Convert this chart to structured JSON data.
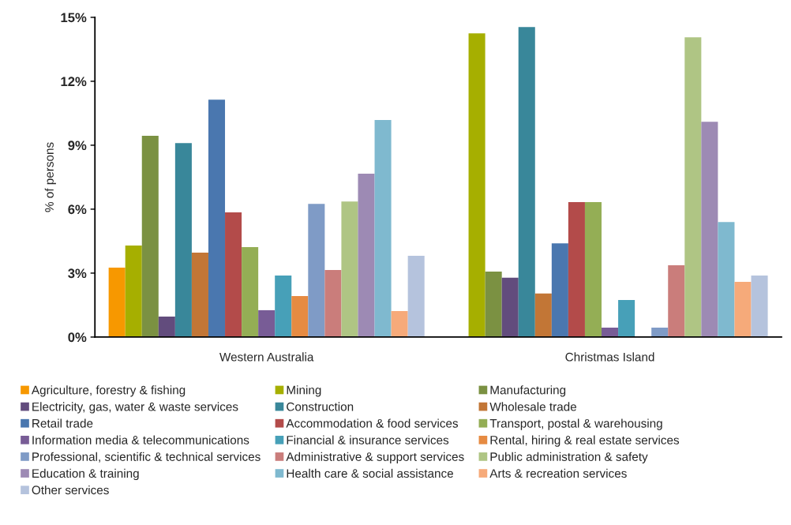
{
  "chart_data": {
    "type": "bar",
    "ylabel": "% of persons",
    "categories": [
      "Western Australia",
      "Christmas Island"
    ],
    "ylim": [
      0,
      15
    ],
    "yticks": [
      {
        "value": 0,
        "label": "0%"
      },
      {
        "value": 3,
        "label": "3%"
      },
      {
        "value": 6,
        "label": "6%"
      },
      {
        "value": 9,
        "label": "9%"
      },
      {
        "value": 12,
        "label": "12%"
      },
      {
        "value": 15,
        "label": "15%"
      }
    ],
    "grid": false,
    "legend": "bottom",
    "series": [
      {
        "name": "Agriculture, forestry & fishing",
        "color": "#f79800",
        "values": [
          3.26,
          0
        ]
      },
      {
        "name": "Mining",
        "color": "#a6af00",
        "values": [
          4.29,
          14.25
        ]
      },
      {
        "name": "Manufacturing",
        "color": "#7b9142",
        "values": [
          9.44,
          3.07
        ]
      },
      {
        "name": "Electricity, gas, water & waste services",
        "color": "#624c7d",
        "values": [
          0.96,
          2.78
        ]
      },
      {
        "name": "Construction",
        "color": "#39879a",
        "values": [
          9.1,
          14.54
        ]
      },
      {
        "name": "Wholesale trade",
        "color": "#c27636",
        "values": [
          3.96,
          2.04
        ]
      },
      {
        "name": "Retail trade",
        "color": "#4a77af",
        "values": [
          11.14,
          4.4
        ]
      },
      {
        "name": "Accommodation & food services",
        "color": "#b34b4a",
        "values": [
          5.85,
          6.33
        ]
      },
      {
        "name": "Transport, postal & warehousing",
        "color": "#94ae55",
        "values": [
          4.22,
          6.33
        ]
      },
      {
        "name": "Information media & telecommunications",
        "color": "#785c96",
        "values": [
          1.26,
          0.44
        ]
      },
      {
        "name": "Financial & insurance services",
        "color": "#47a0b8",
        "values": [
          2.89,
          1.74
        ]
      },
      {
        "name": "Rental, hiring & real estate services",
        "color": "#e68b42",
        "values": [
          1.92,
          0
        ]
      },
      {
        "name": "Professional, scientific & technical services",
        "color": "#7f9bc6",
        "values": [
          6.25,
          0.44
        ]
      },
      {
        "name": "Administrative & support services",
        "color": "#ca7d7b",
        "values": [
          3.15,
          3.37
        ]
      },
      {
        "name": "Public administration & safety",
        "color": "#afc584",
        "values": [
          6.36,
          14.06
        ]
      },
      {
        "name": "Education & training",
        "color": "#9d8ab4",
        "values": [
          7.66,
          10.1
        ]
      },
      {
        "name": "Health care & social assistance",
        "color": "#7fb9cf",
        "values": [
          10.18,
          5.4
        ]
      },
      {
        "name": "Arts & recreation services",
        "color": "#f6aa7a",
        "values": [
          1.22,
          2.59
        ]
      },
      {
        "name": "Other services",
        "color": "#b5c3dd",
        "values": [
          3.81,
          2.89
        ]
      }
    ]
  }
}
